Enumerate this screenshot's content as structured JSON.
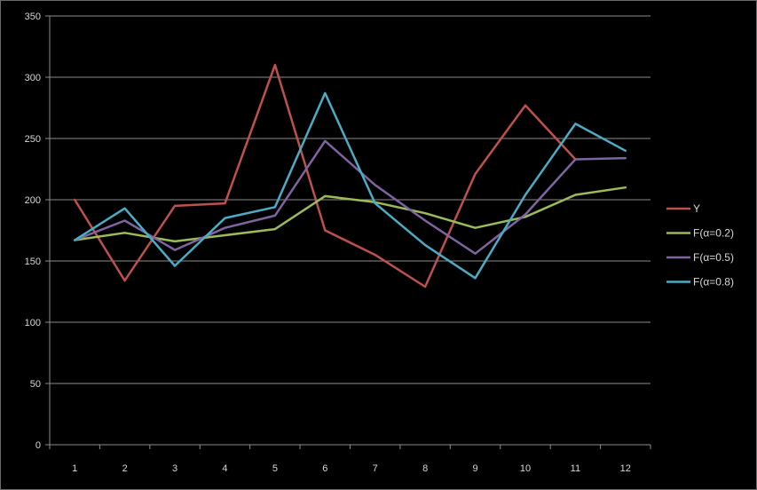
{
  "chart_data": {
    "type": "line",
    "title": "",
    "xlabel": "",
    "ylabel": "",
    "x": [
      "1",
      "2",
      "3",
      "4",
      "5",
      "6",
      "7",
      "8",
      "9",
      "10",
      "11",
      "12"
    ],
    "ylim": [
      0,
      350
    ],
    "yticks": [
      0,
      50,
      100,
      150,
      200,
      250,
      300,
      350
    ],
    "grid": "horizontal",
    "legend_position": "right",
    "series": [
      {
        "name": "Y",
        "color": "#c0504d",
        "values": [
          200,
          134,
          195,
          197,
          310,
          175,
          155,
          129,
          221,
          277,
          233,
          null
        ]
      },
      {
        "name": "F(α=0.2)",
        "color": "#9bbb59",
        "values": [
          167,
          173,
          166,
          171,
          176,
          203,
          198,
          189,
          177,
          186,
          204,
          210
        ]
      },
      {
        "name": "F(α=0.5)",
        "color": "#8064a2",
        "values": [
          167,
          183,
          159,
          177,
          187,
          248,
          212,
          183,
          156,
          188,
          233,
          234
        ]
      },
      {
        "name": "F(α=0.8)",
        "color": "#4bacc6",
        "values": [
          167,
          193,
          146,
          185,
          194,
          287,
          197,
          163,
          136,
          204,
          262,
          240
        ]
      }
    ]
  }
}
